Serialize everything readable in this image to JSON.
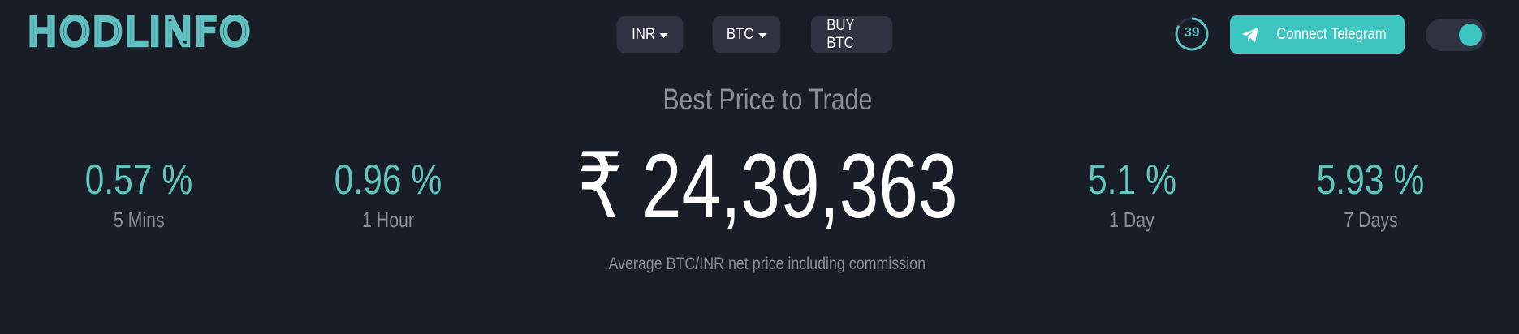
{
  "app": {
    "logo_text": "HODLINFO"
  },
  "nav": {
    "currency": "INR",
    "crypto": "BTC",
    "buy_label": "BUY BTC"
  },
  "timer": {
    "seconds": "39"
  },
  "telegram": {
    "label": "Connect Telegram"
  },
  "theme_toggle": {
    "state": "on"
  },
  "main": {
    "headline": "Best Price to Trade",
    "price": "₹ 24,39,363",
    "subtitle": "Average BTC/INR net price including commission",
    "stats": [
      {
        "value": "0.57 %",
        "label": "5 Mins"
      },
      {
        "value": "0.96 %",
        "label": "1 Hour"
      },
      {
        "value": "5.1 %",
        "label": "1 Day"
      },
      {
        "value": "5.93 %",
        "label": "7 Days"
      }
    ]
  },
  "colors": {
    "background": "#191d28",
    "accent": "#3dc6c1",
    "button_bg": "#2e3241",
    "muted_text": "#8b8e99"
  },
  "icons": {
    "telegram": "paper-plane-icon",
    "dropdown": "caret-down-icon"
  }
}
